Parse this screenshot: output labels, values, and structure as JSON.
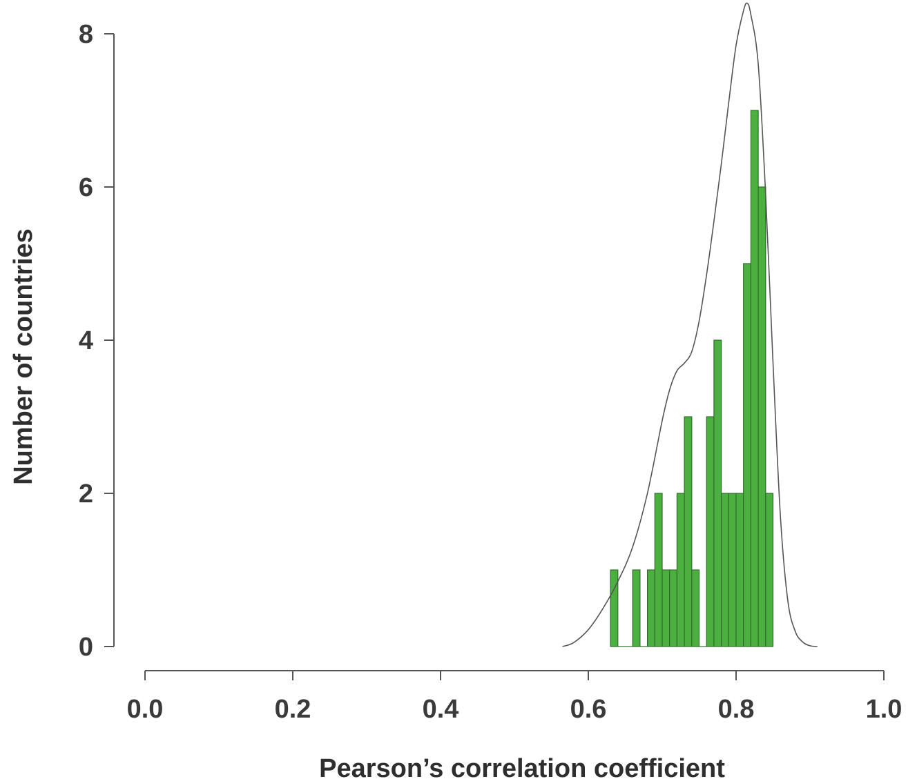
{
  "chart_data": {
    "type": "bar",
    "subtype": "histogram-with-density",
    "xlabel": "Pearson’s correlation coefficient",
    "ylabel": "Number of countries",
    "xlim": [
      0.0,
      1.0
    ],
    "ylim": [
      0,
      8
    ],
    "xticks": [
      "0.0",
      "0.2",
      "0.4",
      "0.6",
      "0.8",
      "1.0"
    ],
    "yticks": [
      "0",
      "2",
      "4",
      "6",
      "8"
    ],
    "bin_width": 0.01,
    "bins": [
      {
        "start": 0.63,
        "count": 1
      },
      {
        "start": 0.64,
        "count": 0
      },
      {
        "start": 0.65,
        "count": 0
      },
      {
        "start": 0.66,
        "count": 1
      },
      {
        "start": 0.67,
        "count": 0
      },
      {
        "start": 0.68,
        "count": 1
      },
      {
        "start": 0.69,
        "count": 2
      },
      {
        "start": 0.7,
        "count": 1
      },
      {
        "start": 0.71,
        "count": 1
      },
      {
        "start": 0.72,
        "count": 2
      },
      {
        "start": 0.73,
        "count": 3
      },
      {
        "start": 0.74,
        "count": 1
      },
      {
        "start": 0.75,
        "count": 0
      },
      {
        "start": 0.76,
        "count": 3
      },
      {
        "start": 0.77,
        "count": 4
      },
      {
        "start": 0.78,
        "count": 2
      },
      {
        "start": 0.79,
        "count": 2
      },
      {
        "start": 0.8,
        "count": 2
      },
      {
        "start": 0.81,
        "count": 5
      },
      {
        "start": 0.82,
        "count": 7
      },
      {
        "start": 0.83,
        "count": 6
      },
      {
        "start": 0.84,
        "count": 2
      }
    ],
    "density_curve": {
      "x": [
        0.565,
        0.58,
        0.6,
        0.62,
        0.64,
        0.66,
        0.68,
        0.7,
        0.71,
        0.72,
        0.73,
        0.74,
        0.75,
        0.76,
        0.77,
        0.78,
        0.79,
        0.8,
        0.81,
        0.815,
        0.82,
        0.83,
        0.84,
        0.85,
        0.86,
        0.87,
        0.88,
        0.89,
        0.9,
        0.91
      ],
      "y": [
        0.0,
        0.05,
        0.22,
        0.5,
        0.85,
        1.3,
        2.0,
        2.95,
        3.35,
        3.6,
        3.7,
        3.85,
        4.25,
        4.85,
        5.55,
        6.3,
        7.1,
        7.85,
        8.3,
        8.4,
        8.25,
        7.6,
        5.9,
        3.7,
        1.7,
        0.6,
        0.2,
        0.06,
        0.01,
        0.0
      ]
    },
    "colors": {
      "bar_fill": "#4cb041",
      "bar_edge": "#2f6e2a",
      "curve": "#555555",
      "axis": "#555555"
    },
    "grid": false,
    "legend": "none"
  }
}
